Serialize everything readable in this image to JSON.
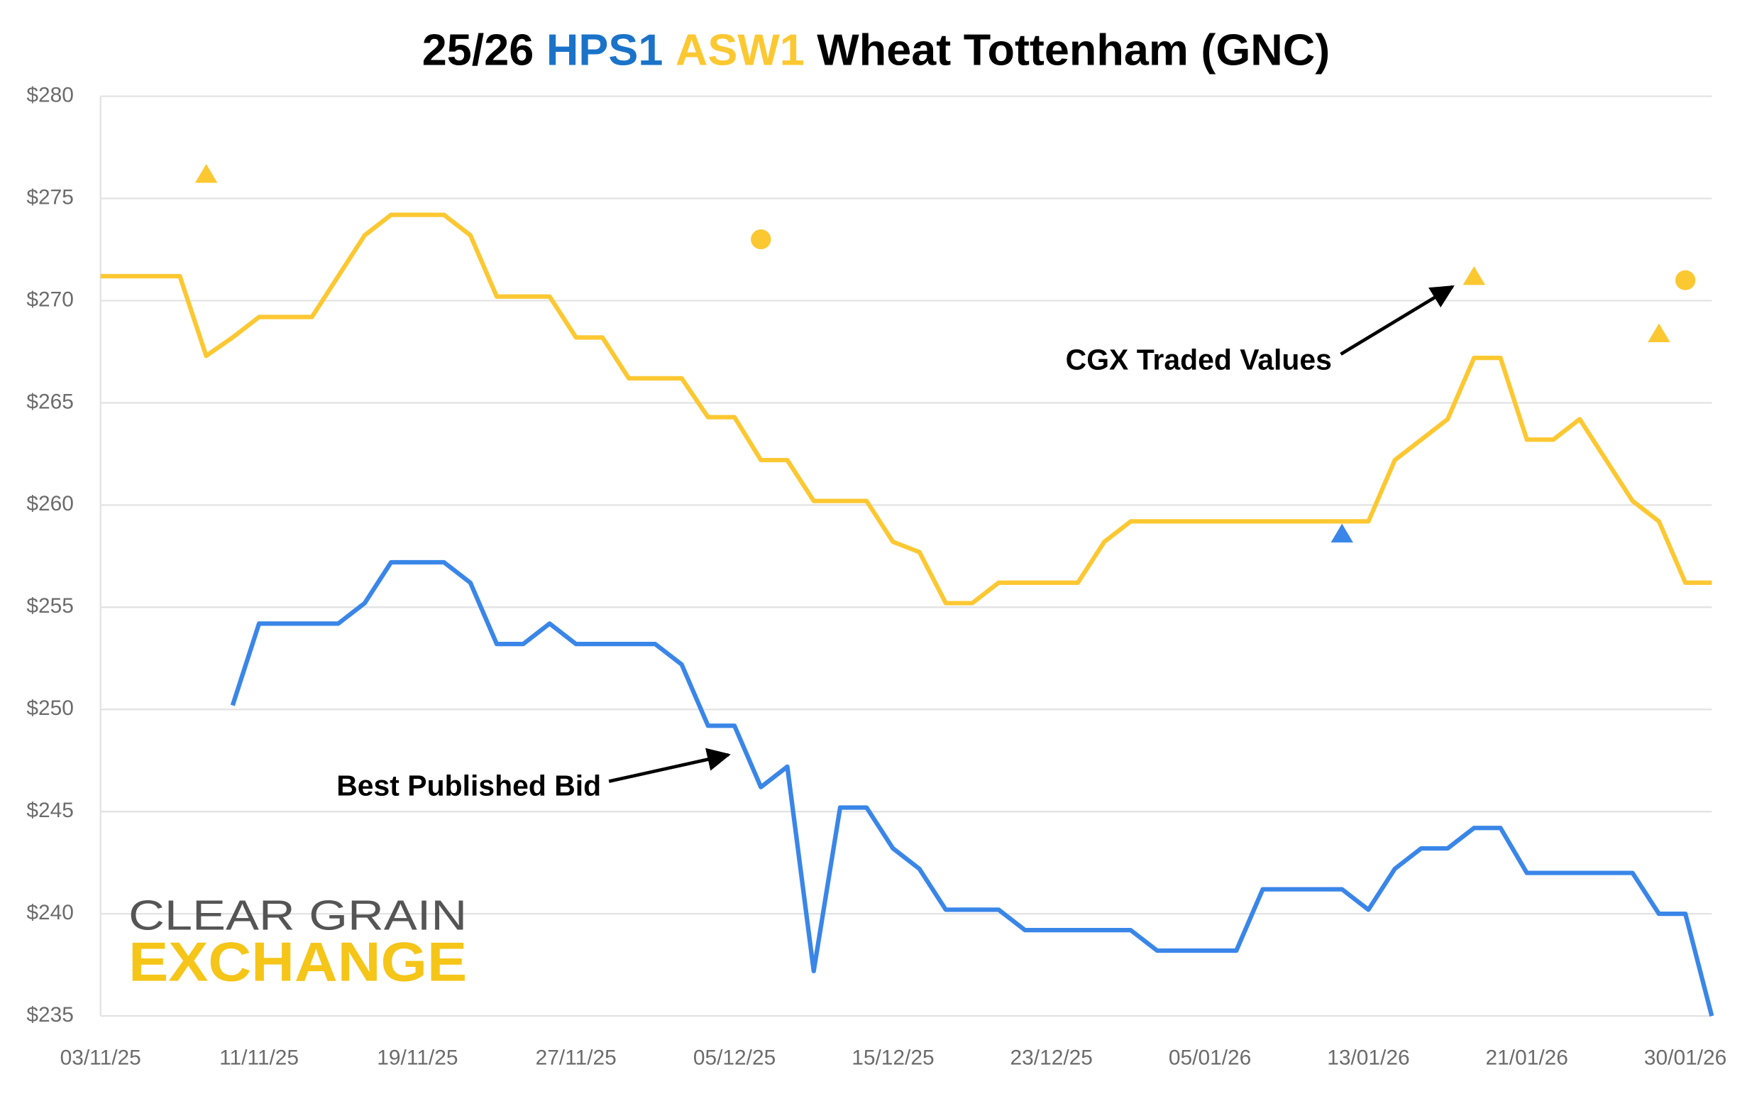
{
  "chart_data": {
    "type": "line",
    "title_prefix": "25/26",
    "title_suffix": "Wheat Tottenham (GNC)",
    "categories": [
      "03/11/25",
      null,
      null,
      null,
      null,
      null,
      "11/11/25",
      null,
      null,
      null,
      null,
      null,
      "19/11/25",
      null,
      null,
      null,
      null,
      null,
      "27/11/25",
      null,
      null,
      null,
      null,
      null,
      "05/12/25",
      null,
      null,
      null,
      null,
      null,
      "15/12/25",
      null,
      null,
      null,
      null,
      null,
      "23/12/25",
      null,
      null,
      null,
      null,
      null,
      "05/01/26",
      null,
      null,
      null,
      null,
      null,
      "13/01/26",
      null,
      null,
      null,
      null,
      null,
      "21/01/26",
      null,
      null,
      null,
      null,
      null,
      "30/01/26",
      null
    ],
    "series": [
      {
        "name": "HPS1",
        "color": "#3a86e8",
        "values": [
          null,
          null,
          null,
          null,
          null,
          250.2,
          254.2,
          254.2,
          254.2,
          254.2,
          255.2,
          257.2,
          257.2,
          257.2,
          256.2,
          253.2,
          253.2,
          254.2,
          253.2,
          253.2,
          253.2,
          253.2,
          252.2,
          249.2,
          249.2,
          246.2,
          247.2,
          237.2,
          245.2,
          245.2,
          243.2,
          242.2,
          240.2,
          240.2,
          240.2,
          239.2,
          239.2,
          239.2,
          239.2,
          239.2,
          238.2,
          238.2,
          238.2,
          238.2,
          241.2,
          241.2,
          241.2,
          241.2,
          240.2,
          242.2,
          243.2,
          243.2,
          244.2,
          244.2,
          242.0,
          242.0,
          242.0,
          242.0,
          242.0,
          240.0,
          240.0,
          235.0
        ]
      },
      {
        "name": "ASW1",
        "color": "#fcc832",
        "values": [
          271.2,
          271.2,
          271.2,
          271.2,
          267.3,
          268.2,
          269.2,
          269.2,
          269.2,
          271.2,
          273.2,
          274.2,
          274.2,
          274.2,
          273.2,
          270.2,
          270.2,
          270.2,
          268.2,
          268.2,
          266.2,
          266.2,
          266.2,
          264.3,
          264.3,
          262.2,
          262.2,
          260.2,
          260.2,
          260.2,
          258.2,
          257.7,
          255.2,
          255.2,
          256.2,
          256.2,
          256.2,
          256.2,
          258.2,
          259.2,
          259.2,
          259.2,
          259.2,
          259.2,
          259.2,
          259.2,
          259.2,
          259.2,
          259.2,
          262.2,
          263.2,
          264.2,
          267.2,
          267.2,
          263.2,
          263.2,
          264.2,
          262.2,
          260.2,
          259.2,
          256.2,
          256.2
        ]
      }
    ],
    "markers": [
      {
        "series": 1,
        "shape": "triangle",
        "index": 4,
        "value": 276.2
      },
      {
        "series": 1,
        "shape": "circle",
        "index": 25,
        "value": 273.0
      },
      {
        "series": 1,
        "shape": "triangle",
        "index": 52,
        "value": 271.2
      },
      {
        "series": 1,
        "shape": "triangle",
        "index": 59,
        "value": 268.4
      },
      {
        "series": 1,
        "shape": "circle",
        "index": 60,
        "value": 271.0
      },
      {
        "series": 0,
        "shape": "triangle",
        "index": 47,
        "value": 258.6
      }
    ],
    "ylim": [
      235,
      280
    ],
    "yticks": [
      {
        "value": 235,
        "label": "$235"
      },
      {
        "value": 240,
        "label": "$240"
      },
      {
        "value": 245,
        "label": "$245"
      },
      {
        "value": 250,
        "label": "$250"
      },
      {
        "value": 255,
        "label": "$255"
      },
      {
        "value": 260,
        "label": "$260"
      },
      {
        "value": 265,
        "label": "$265"
      },
      {
        "value": 270,
        "label": "$270"
      },
      {
        "value": 275,
        "label": "$275"
      },
      {
        "value": 280,
        "label": "$280"
      }
    ],
    "grid": true,
    "annotations": [
      "CGX Traded Values",
      "Best Published Bid"
    ],
    "logo": [
      "CLEAR GRAIN",
      "EXCHANGE"
    ]
  }
}
